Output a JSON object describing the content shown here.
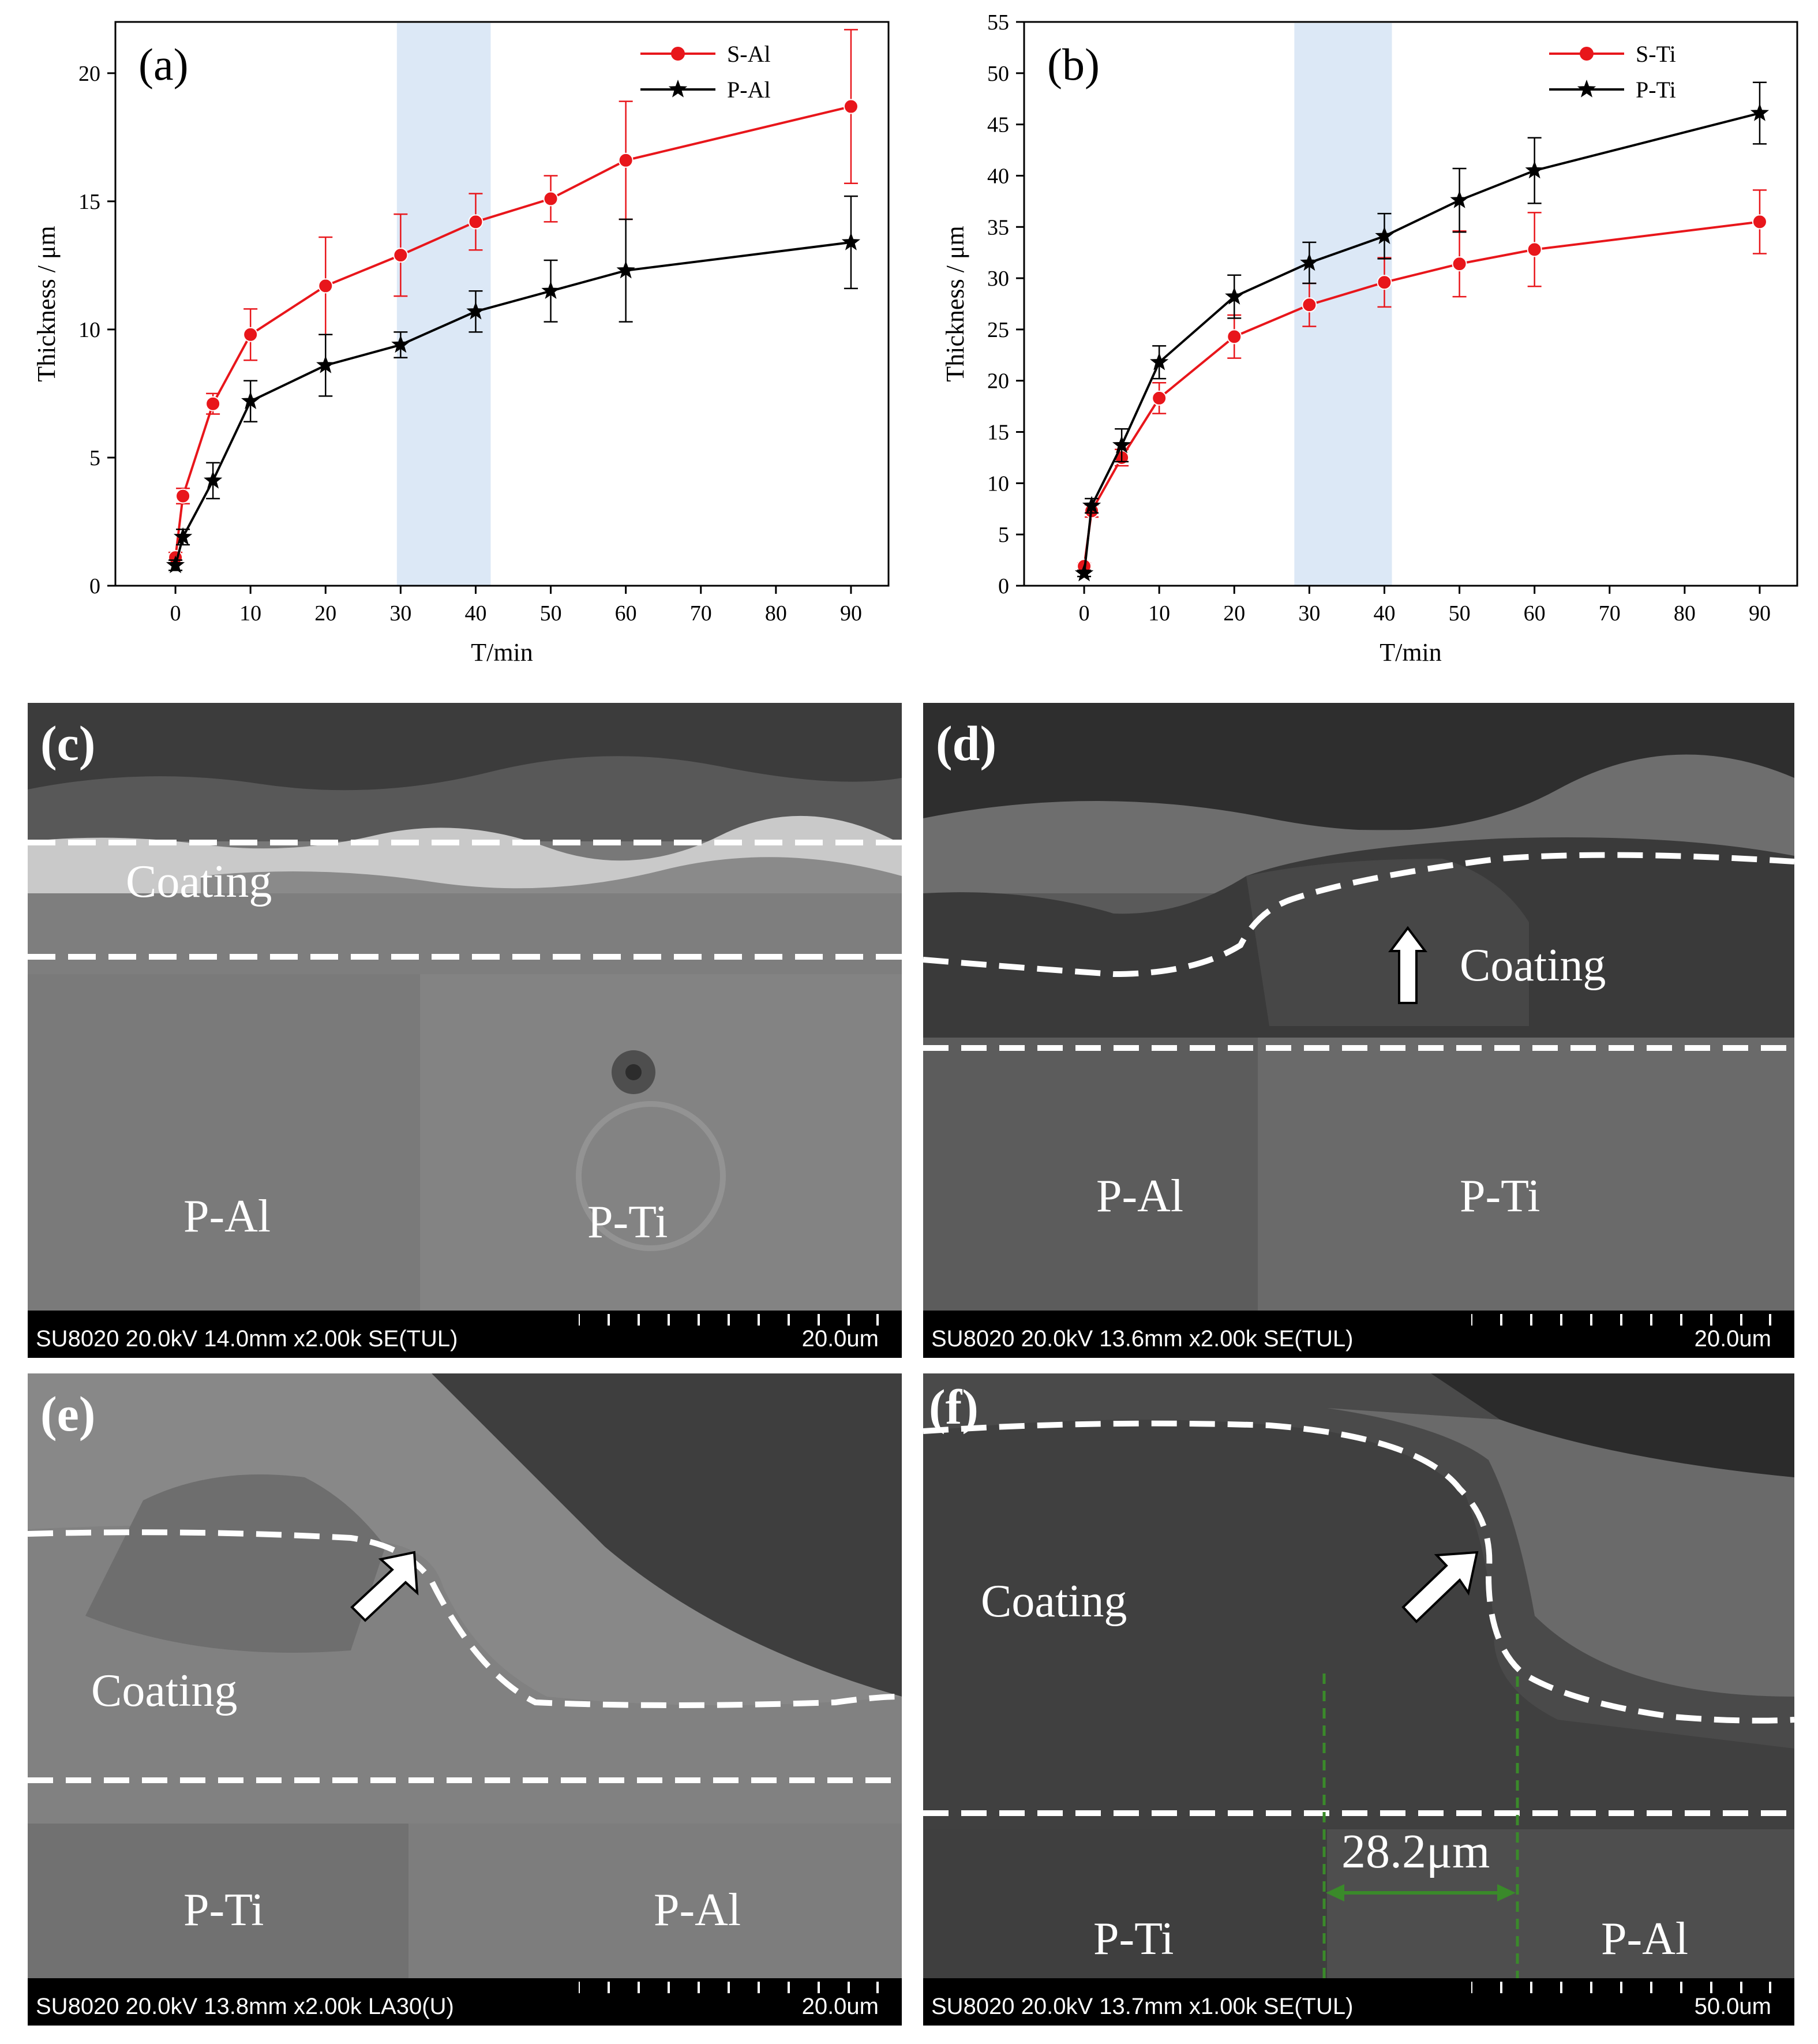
{
  "colors": {
    "red": "#e8161b",
    "black": "#000000",
    "highlight": "#dce8f6",
    "measure_line": "#3a8a2a"
  },
  "chart_data": [
    {
      "panel": "(a)",
      "type": "line",
      "xlabel": "T/min",
      "ylabel": "Thickness / μm",
      "xlim": [
        -8,
        95
      ],
      "ylim": [
        0,
        22
      ],
      "xticks": [
        0,
        10,
        20,
        30,
        40,
        50,
        60,
        70,
        80,
        90
      ],
      "yticks": [
        0,
        5,
        10,
        15,
        20
      ],
      "highlight": [
        29.5,
        42
      ],
      "legend_position": "top-right",
      "series": [
        {
          "name": "S-Al",
          "color": "#e8161b",
          "marker": "circle",
          "x": [
            0,
            1,
            5,
            10,
            20,
            30,
            40,
            50,
            60,
            90
          ],
          "y": [
            1.1,
            3.5,
            7.1,
            9.8,
            11.7,
            12.9,
            14.2,
            15.1,
            16.6,
            18.7
          ],
          "err": [
            0.2,
            0.3,
            0.4,
            1.0,
            1.9,
            1.6,
            1.1,
            0.9,
            2.3,
            3.0
          ]
        },
        {
          "name": "P-Al",
          "color": "#000000",
          "marker": "star",
          "x": [
            0,
            1,
            5,
            10,
            20,
            30,
            40,
            50,
            60,
            90
          ],
          "y": [
            0.8,
            1.9,
            4.1,
            7.2,
            8.6,
            9.4,
            10.7,
            11.5,
            12.3,
            13.4
          ],
          "err": [
            0.2,
            0.3,
            0.7,
            0.8,
            1.2,
            0.5,
            0.8,
            1.2,
            2.0,
            1.8
          ]
        }
      ]
    },
    {
      "panel": "(b)",
      "type": "line",
      "xlabel": "T/min",
      "ylabel": "Thickness / μm",
      "xlim": [
        -8,
        95
      ],
      "ylim": [
        0,
        55
      ],
      "xticks": [
        0,
        10,
        20,
        30,
        40,
        50,
        60,
        70,
        80,
        90
      ],
      "yticks": [
        0,
        5,
        10,
        15,
        20,
        25,
        30,
        35,
        40,
        45,
        50,
        55
      ],
      "highlight": [
        28,
        41
      ],
      "legend_position": "top-right",
      "series": [
        {
          "name": "S-Ti",
          "color": "#e8161b",
          "marker": "circle",
          "x": [
            0,
            1,
            5,
            10,
            20,
            30,
            40,
            50,
            60,
            90
          ],
          "y": [
            1.9,
            7.3,
            12.5,
            18.3,
            24.3,
            27.4,
            29.6,
            31.4,
            32.8,
            35.5
          ],
          "err": [
            0.3,
            0.6,
            0.8,
            1.5,
            2.1,
            2.1,
            2.4,
            3.2,
            3.6,
            3.1
          ]
        },
        {
          "name": "P-Ti",
          "color": "#000000",
          "marker": "star",
          "x": [
            0,
            1,
            5,
            10,
            20,
            30,
            40,
            50,
            60,
            90
          ],
          "y": [
            1.2,
            7.8,
            13.7,
            21.8,
            28.2,
            31.5,
            34.1,
            37.6,
            40.5,
            46.1
          ],
          "err": [
            0.3,
            0.7,
            1.6,
            1.6,
            2.1,
            2.0,
            2.2,
            3.1,
            3.2,
            3.0
          ]
        }
      ]
    }
  ],
  "images": [
    {
      "letter": "(c)",
      "labels": [
        "Coating",
        "P-Al",
        "P-Ti"
      ],
      "info": "SU8020 20.0kV 14.0mm x2.00k SE(TUL)",
      "scale": "20.0um"
    },
    {
      "letter": "(d)",
      "labels": [
        "Coating",
        "P-Al",
        "P-Ti"
      ],
      "info": "SU8020 20.0kV 13.6mm x2.00k SE(TUL)",
      "scale": "20.0um"
    },
    {
      "letter": "(e)",
      "labels": [
        "Coating",
        "P-Ti",
        "P-Al"
      ],
      "info": "SU8020 20.0kV 13.8mm x2.00k LA30(U)",
      "scale": "20.0um"
    },
    {
      "letter": "(f)",
      "labels": [
        "Coating",
        "P-Ti",
        "P-Al"
      ],
      "info": "SU8020 20.0kV 13.7mm x1.00k SE(TUL)",
      "scale": "50.0um",
      "measurement": "28.2μm"
    }
  ]
}
